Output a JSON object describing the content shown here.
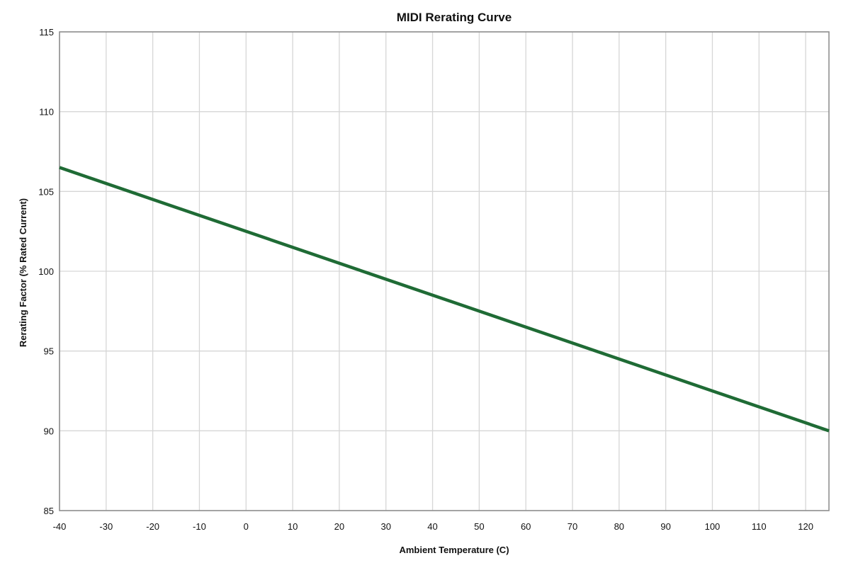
{
  "chart_data": {
    "type": "line",
    "title": "MIDI Rerating Curve",
    "xlabel": "Ambient Temperature (C)",
    "ylabel": "Rerating Factor (% Rated Current)",
    "xlim": [
      -40,
      125
    ],
    "ylim": [
      85,
      115
    ],
    "x_ticks": [
      -40,
      -30,
      -20,
      -10,
      0,
      10,
      20,
      30,
      40,
      50,
      60,
      70,
      80,
      90,
      100,
      110,
      120
    ],
    "y_ticks": [
      85,
      90,
      95,
      100,
      105,
      110,
      115
    ],
    "grid": true,
    "series": [
      {
        "x": [
          -40,
          125
        ],
        "y": [
          106.5,
          90
        ],
        "color": "#1f6b35"
      }
    ]
  }
}
